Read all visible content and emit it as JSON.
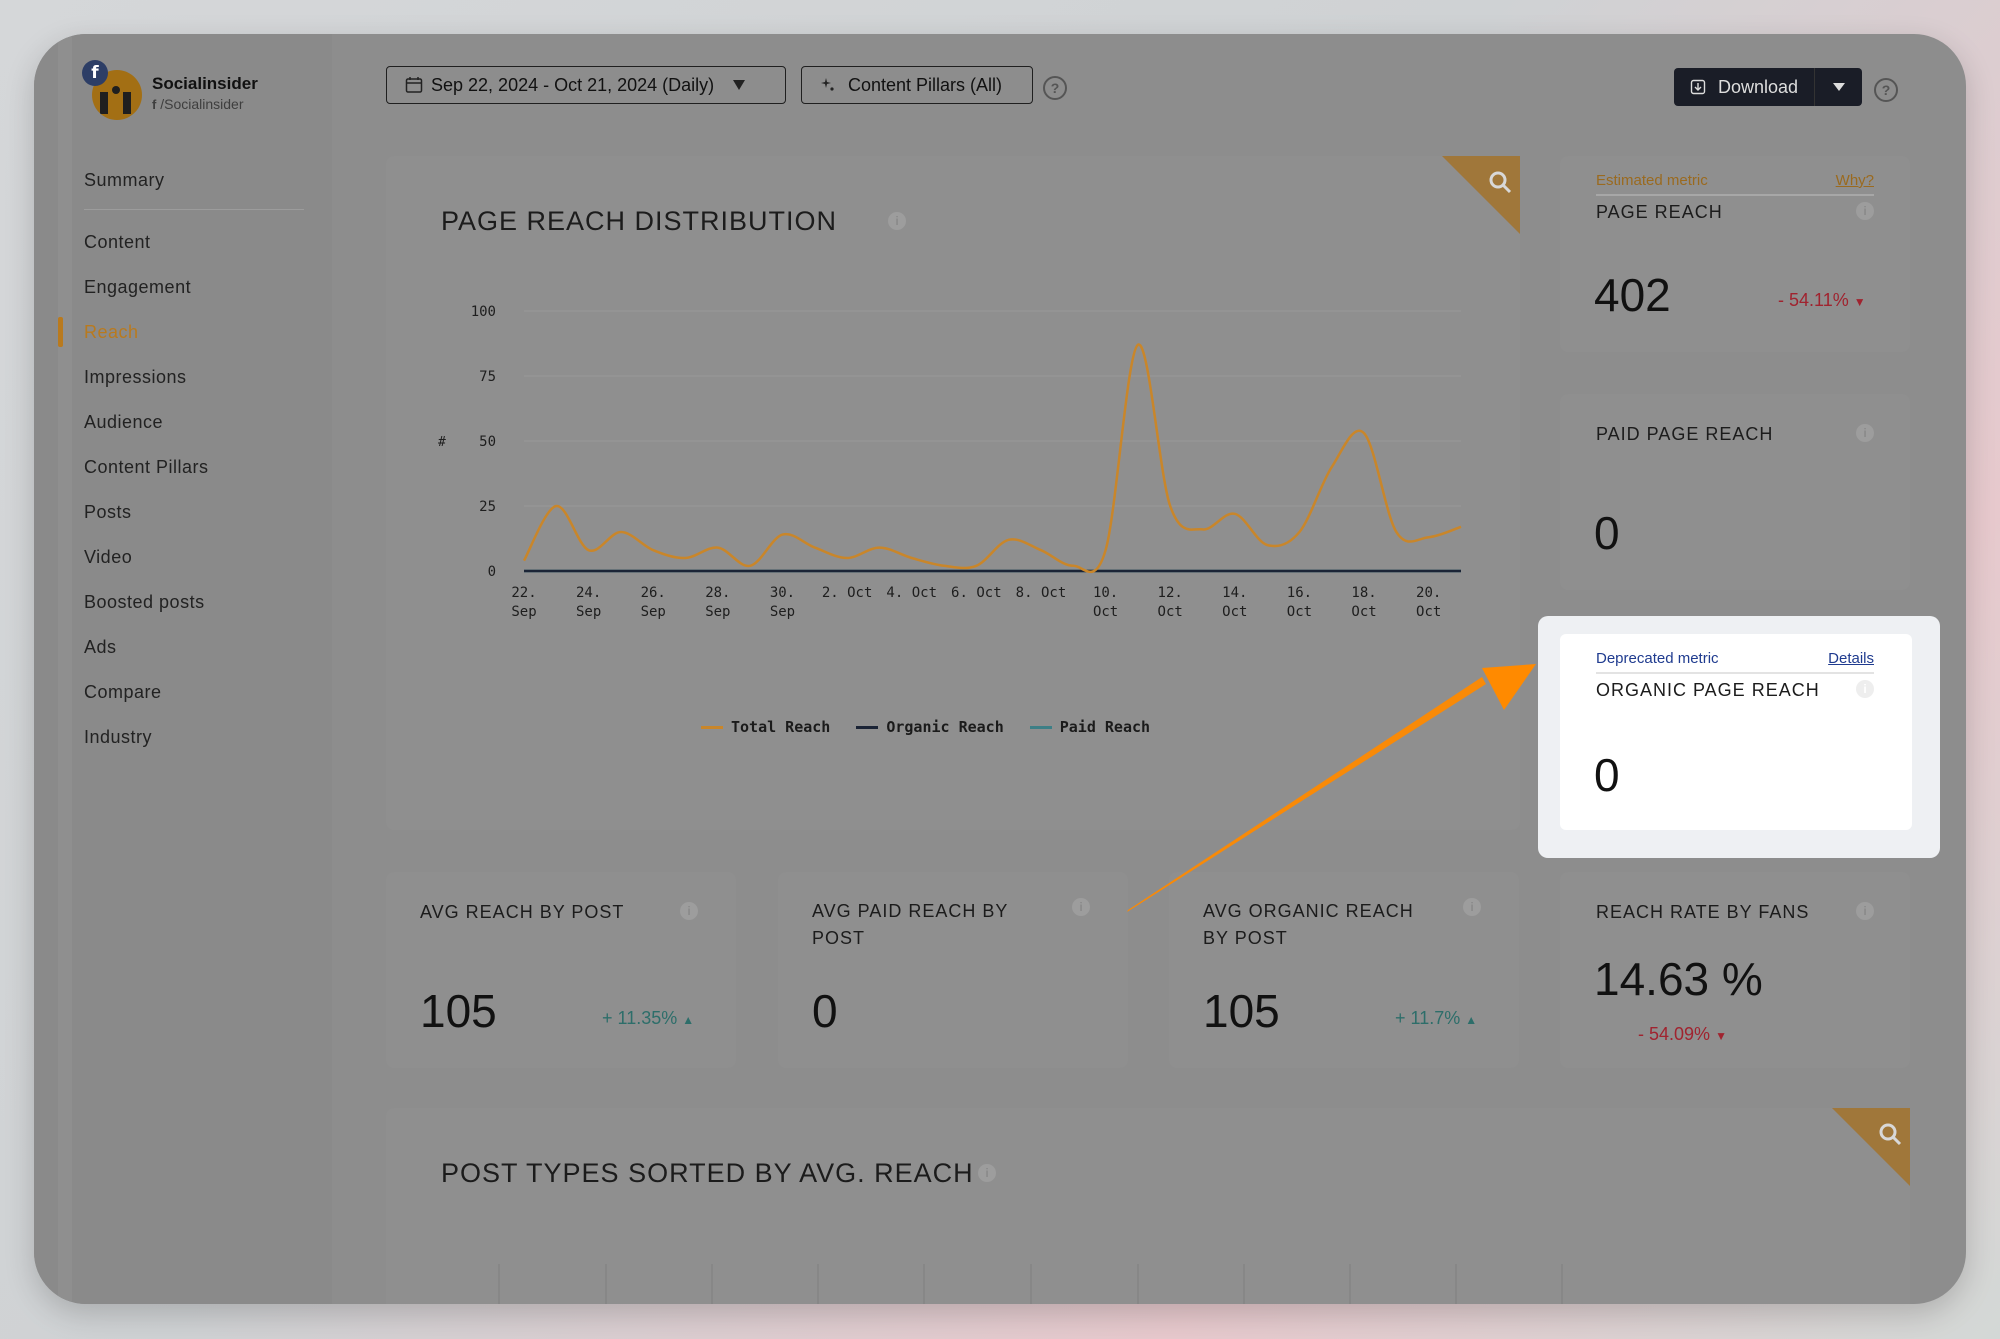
{
  "brand": {
    "name": "Socialinsider",
    "handle": "/Socialinsider",
    "network_badge": "f"
  },
  "nav": {
    "summary": "Summary",
    "items": [
      "Content",
      "Engagement",
      "Reach",
      "Impressions",
      "Audience",
      "Content Pillars",
      "Posts",
      "Video",
      "Boosted posts",
      "Ads",
      "Compare",
      "Industry"
    ],
    "active": "Reach"
  },
  "toolbar": {
    "date_range": "Sep 22, 2024 - Oct 21, 2024 (Daily)",
    "content_pillars": "Content Pillars (All)",
    "download": "Download"
  },
  "reach_chart": {
    "title": "PAGE REACH DISTRIBUTION",
    "y_axis_label": "#"
  },
  "chart_data": {
    "type": "line",
    "title": "PAGE REACH DISTRIBUTION",
    "ylabel": "#",
    "ylim": [
      0,
      100
    ],
    "yticks": [
      0,
      25,
      50,
      75,
      100
    ],
    "xlim": [
      0,
      29
    ],
    "x_ticks": [
      {
        "x": 0,
        "l1": "22.",
        "l2": "Sep"
      },
      {
        "x": 2,
        "l1": "24.",
        "l2": "Sep"
      },
      {
        "x": 4,
        "l1": "26.",
        "l2": "Sep"
      },
      {
        "x": 6,
        "l1": "28.",
        "l2": "Sep"
      },
      {
        "x": 8,
        "l1": "30.",
        "l2": "Sep"
      },
      {
        "x": 10,
        "l1": "2. Oct",
        "l2": ""
      },
      {
        "x": 12,
        "l1": "4. Oct",
        "l2": ""
      },
      {
        "x": 14,
        "l1": "6. Oct",
        "l2": ""
      },
      {
        "x": 16,
        "l1": "8. Oct",
        "l2": ""
      },
      {
        "x": 18,
        "l1": "10.",
        "l2": "Oct"
      },
      {
        "x": 20,
        "l1": "12.",
        "l2": "Oct"
      },
      {
        "x": 22,
        "l1": "14.",
        "l2": "Oct"
      },
      {
        "x": 24,
        "l1": "16.",
        "l2": "Oct"
      },
      {
        "x": 26,
        "l1": "18.",
        "l2": "Oct"
      },
      {
        "x": 28,
        "l1": "20.",
        "l2": "Oct"
      }
    ],
    "series": [
      {
        "name": "Total Reach",
        "color": "#c9862a",
        "values": [
          4,
          25,
          8,
          15,
          8,
          5,
          9,
          2,
          14,
          9,
          5,
          9,
          5,
          2,
          2,
          12,
          8,
          2,
          8,
          87,
          25,
          16,
          22,
          10,
          15,
          40,
          53,
          15,
          13,
          17
        ]
      },
      {
        "name": "Organic Reach",
        "color": "#1b2436",
        "values": [
          0,
          0,
          0,
          0,
          0,
          0,
          0,
          0,
          0,
          0,
          0,
          0,
          0,
          0,
          0,
          0,
          0,
          0,
          0,
          0,
          0,
          0,
          0,
          0,
          0,
          0,
          0,
          0,
          0,
          0
        ]
      },
      {
        "name": "Paid Reach",
        "color": "#3d7f86",
        "values": [
          0,
          0,
          0,
          0,
          0,
          0,
          0,
          0,
          0,
          0,
          0,
          0,
          0,
          0,
          0,
          0,
          0,
          0,
          0,
          0,
          0,
          0,
          0,
          0,
          0,
          0,
          0,
          0,
          0,
          0
        ]
      }
    ],
    "legend": "bottom"
  },
  "metrics": {
    "page_reach": {
      "tag": "Estimated metric",
      "tag_link": "Why?",
      "title": "PAGE REACH",
      "value": "402",
      "delta": "- 54.11%"
    },
    "paid_page_reach": {
      "title": "PAID PAGE REACH",
      "value": "0"
    },
    "organic_page_reach": {
      "tag": "Deprecated metric",
      "tag_link": "Details",
      "title": "ORGANIC PAGE REACH",
      "value": "0"
    },
    "avg_reach_by_post": {
      "title": "AVG REACH BY POST",
      "value": "105",
      "delta": "+ 11.35%"
    },
    "avg_paid_reach_by_post": {
      "title_line1": "AVG PAID REACH BY",
      "title_line2": "POST",
      "value": "0"
    },
    "avg_organic_reach_by_post": {
      "title_line1": "AVG ORGANIC REACH",
      "title_line2": "BY POST",
      "value": "105",
      "delta": "+ 11.7%"
    },
    "reach_rate_by_fans": {
      "title": "REACH RATE BY FANS",
      "value": "14.63 %",
      "delta": "- 54.09%"
    }
  },
  "post_types": {
    "title": "POST TYPES SORTED BY AVG. REACH"
  },
  "colors": {
    "accent": "#b97a1e",
    "arrow": "#ff8a00",
    "link_blue": "#1f3b8f"
  },
  "icons": {
    "help": "?",
    "info": "i"
  }
}
